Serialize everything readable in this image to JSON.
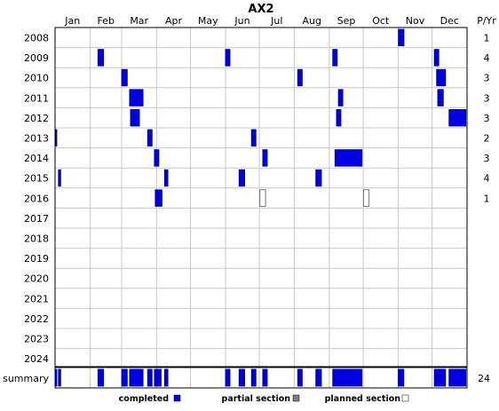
{
  "chart_data": {
    "type": "timeline",
    "title": "AX2",
    "months": [
      "Jan",
      "Feb",
      "Mar",
      "Apr",
      "May",
      "Jun",
      "Jul",
      "Aug",
      "Sep",
      "Oct",
      "Nov",
      "Dec"
    ],
    "per_year_header": "P/Yr",
    "years": [
      "2008",
      "2009",
      "2010",
      "2011",
      "2012",
      "2013",
      "2014",
      "2015",
      "2016",
      "2017",
      "2018",
      "2019",
      "2020",
      "2021",
      "2022",
      "2023",
      "2024"
    ],
    "per_year": [
      "1",
      "4",
      "3",
      "3",
      "3",
      "2",
      "3",
      "4",
      "1",
      "",
      "",
      "",
      "",
      "",
      "",
      "",
      ""
    ],
    "summary_label": "summary",
    "summary_count": "24",
    "legend": {
      "completed": "completed",
      "partial": "partial section",
      "planned": "planned section"
    },
    "colors": {
      "completed": "#0000e0",
      "partial": "#808080",
      "planned": "#ffffff",
      "grid": "#c8c8c8"
    },
    "sections": [
      {
        "year": "2008",
        "start": "2008-11-01",
        "end": "2008-11-06",
        "status": "completed"
      },
      {
        "year": "2009",
        "start": "2009-02-08",
        "end": "2009-02-13",
        "status": "completed"
      },
      {
        "year": "2009",
        "start": "2009-06-01",
        "end": "2009-06-05",
        "status": "completed"
      },
      {
        "year": "2009",
        "start": "2009-09-04",
        "end": "2009-09-08",
        "status": "completed"
      },
      {
        "year": "2009",
        "start": "2009-12-03",
        "end": "2009-12-07",
        "status": "completed"
      },
      {
        "year": "2010",
        "start": "2010-03-01",
        "end": "2010-03-06",
        "status": "completed"
      },
      {
        "year": "2010",
        "start": "2010-08-04",
        "end": "2010-08-08",
        "status": "completed"
      },
      {
        "year": "2010",
        "start": "2010-12-05",
        "end": "2010-12-13",
        "status": "completed"
      },
      {
        "year": "2011",
        "start": "2011-03-08",
        "end": "2011-03-20",
        "status": "completed"
      },
      {
        "year": "2011",
        "start": "2011-09-09",
        "end": "2011-09-13",
        "status": "completed"
      },
      {
        "year": "2011",
        "start": "2011-12-06",
        "end": "2011-12-11",
        "status": "completed"
      },
      {
        "year": "2012",
        "start": "2012-03-08",
        "end": "2012-03-16",
        "status": "completed"
      },
      {
        "year": "2012",
        "start": "2012-09-07",
        "end": "2012-09-11",
        "status": "completed"
      },
      {
        "year": "2012",
        "start": "2012-12-16",
        "end": "2012-12-31",
        "status": "completed"
      },
      {
        "year": "2013",
        "start": "2013-01-01",
        "end": "2013-01-02",
        "status": "completed"
      },
      {
        "year": "2013",
        "start": "2013-03-24",
        "end": "2013-03-28",
        "status": "completed"
      },
      {
        "year": "2013",
        "start": "2013-06-24",
        "end": "2013-06-28",
        "status": "completed"
      },
      {
        "year": "2014",
        "start": "2014-03-30",
        "end": "2014-04-03",
        "status": "completed"
      },
      {
        "year": "2014",
        "start": "2014-07-04",
        "end": "2014-07-08",
        "status": "completed"
      },
      {
        "year": "2014",
        "start": "2014-09-06",
        "end": "2014-09-30",
        "status": "completed"
      },
      {
        "year": "2015",
        "start": "2015-01-04",
        "end": "2015-01-06",
        "status": "completed"
      },
      {
        "year": "2015",
        "start": "2015-04-08",
        "end": "2015-04-11",
        "status": "completed"
      },
      {
        "year": "2015",
        "start": "2015-06-13",
        "end": "2015-06-18",
        "status": "completed"
      },
      {
        "year": "2015",
        "start": "2015-08-20",
        "end": "2015-08-25",
        "status": "completed"
      },
      {
        "year": "2016",
        "start": "2016-03-30",
        "end": "2016-04-05",
        "status": "completed"
      },
      {
        "year": "2016",
        "start": "2016-07-01",
        "end": "2016-07-06",
        "status": "planned"
      },
      {
        "year": "2016",
        "start": "2016-10-01",
        "end": "2016-10-06",
        "status": "planned"
      }
    ],
    "summary": [
      {
        "start": "01-01",
        "end": "01-02"
      },
      {
        "start": "01-04",
        "end": "01-06"
      },
      {
        "start": "02-08",
        "end": "02-13"
      },
      {
        "start": "03-01",
        "end": "03-06"
      },
      {
        "start": "03-08",
        "end": "03-20"
      },
      {
        "start": "03-24",
        "end": "03-28"
      },
      {
        "start": "03-30",
        "end": "04-05"
      },
      {
        "start": "04-08",
        "end": "04-11"
      },
      {
        "start": "06-01",
        "end": "06-05"
      },
      {
        "start": "06-13",
        "end": "06-18"
      },
      {
        "start": "06-24",
        "end": "06-28"
      },
      {
        "start": "07-04",
        "end": "07-08"
      },
      {
        "start": "08-04",
        "end": "08-08"
      },
      {
        "start": "08-20",
        "end": "08-25"
      },
      {
        "start": "09-04",
        "end": "09-30"
      },
      {
        "start": "11-01",
        "end": "11-06"
      },
      {
        "start": "12-03",
        "end": "12-13"
      },
      {
        "start": "12-16",
        "end": "12-31"
      }
    ]
  }
}
